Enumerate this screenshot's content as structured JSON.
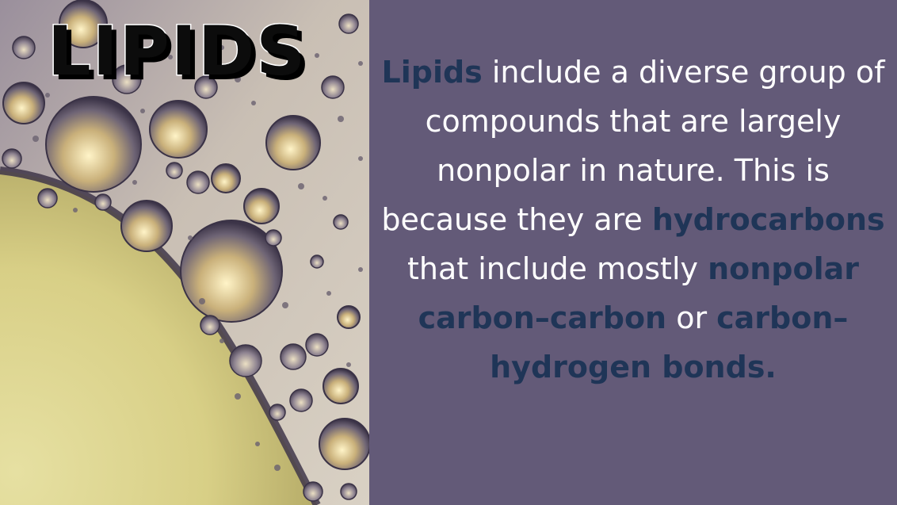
{
  "slide": {
    "title": "LIPIDS",
    "image_alt": "oil bubbles",
    "colors": {
      "background": "#635a78",
      "body_text": "#ffffff",
      "highlight": "#1f3557",
      "title_fill": "#0c0c0c",
      "title_outline": "#ffffff"
    },
    "paragraph": {
      "t1": "Lipids",
      "t2": " include a diverse group of compounds that are largely nonpolar in nature. This is because they are ",
      "t3": "hydrocarbons",
      "t4": " that include mostly ",
      "t5": "nonpolar carbon–carbon",
      "t6": " or ",
      "t7": "carbon–hydrogen bonds."
    }
  }
}
